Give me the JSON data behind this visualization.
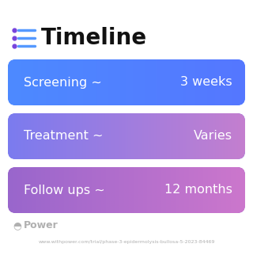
{
  "title": "Timeline",
  "background_color": "#ffffff",
  "rows": [
    {
      "label": "Screening ~",
      "value": "3 weeks",
      "color_left": "#4d8aff",
      "color_right": "#5577ff"
    },
    {
      "label": "Treatment ~",
      "value": "Varies",
      "color_left": "#7b7bef",
      "color_right": "#c47fcf"
    },
    {
      "label": "Follow ups ~",
      "value": "12 months",
      "color_left": "#9966cc",
      "color_right": "#cc77cc"
    }
  ],
  "icon_color_dot": "#7744dd",
  "icon_color_line": "#5599ff",
  "title_fontsize": 20,
  "row_fontsize": 11.5,
  "footer_text": "Power",
  "footer_url": "www.withpower.com/trial/phase-3-epidermolysis-bullosa-5-2023-84469",
  "footer_color": "#b0b0b0"
}
